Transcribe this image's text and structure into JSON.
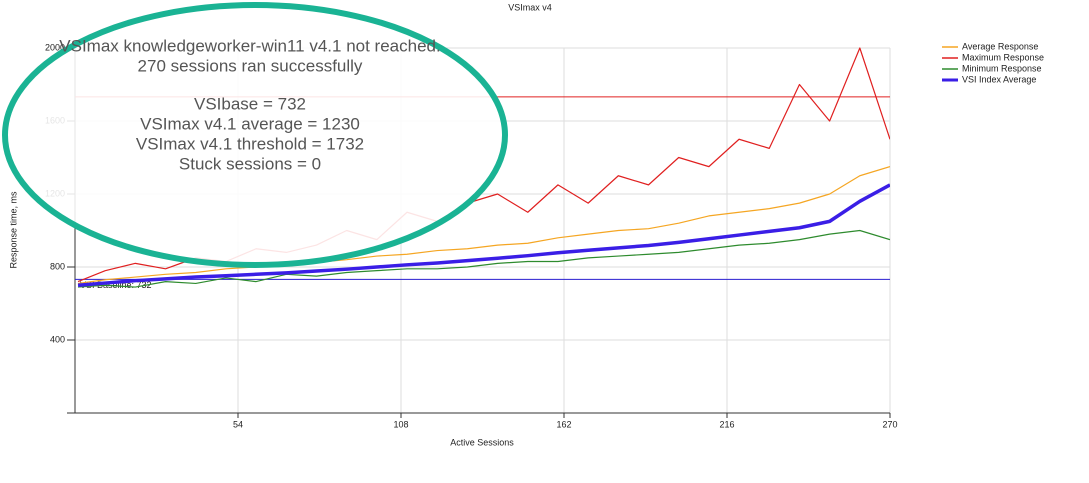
{
  "chart_data": {
    "type": "line",
    "title": "VSImax v4",
    "x_label": "Active Sessions",
    "y_label": "Response time, ms",
    "x": [
      1,
      10,
      20,
      30,
      40,
      50,
      60,
      70,
      80,
      90,
      100,
      110,
      120,
      130,
      140,
      150,
      160,
      170,
      180,
      190,
      200,
      210,
      220,
      230,
      240,
      250,
      260,
      270
    ],
    "series": [
      {
        "name": "Average Response",
        "color": "#f5a623",
        "values": [
          710,
          730,
          745,
          760,
          770,
          790,
          800,
          810,
          825,
          840,
          860,
          870,
          890,
          900,
          920,
          930,
          960,
          980,
          1000,
          1010,
          1040,
          1080,
          1100,
          1120,
          1150,
          1200,
          1300,
          1350
        ]
      },
      {
        "name": "Maximum Response",
        "color": "#e02020",
        "values": [
          720,
          780,
          820,
          790,
          850,
          830,
          900,
          880,
          920,
          1000,
          950,
          1100,
          1050,
          1150,
          1200,
          1100,
          1250,
          1150,
          1300,
          1250,
          1400,
          1350,
          1500,
          1450,
          1800,
          1600,
          2000,
          1500
        ]
      },
      {
        "name": "Minimum Response",
        "color": "#2e8b2e",
        "values": [
          690,
          700,
          690,
          720,
          710,
          740,
          720,
          760,
          750,
          770,
          780,
          790,
          790,
          800,
          820,
          830,
          830,
          850,
          860,
          870,
          880,
          900,
          920,
          930,
          950,
          980,
          1000,
          950
        ]
      },
      {
        "name": "VSI Index Average",
        "color": "#3a1ee6",
        "values": [
          700,
          712,
          725,
          735,
          745,
          752,
          760,
          768,
          778,
          788,
          800,
          812,
          822,
          835,
          848,
          862,
          878,
          892,
          905,
          918,
          935,
          955,
          975,
          995,
          1015,
          1050,
          1160,
          1250
        ]
      }
    ],
    "xlim": [
      0,
      270
    ],
    "xticks": [
      54,
      108,
      162,
      216,
      270
    ],
    "ylim": [
      0,
      2000
    ],
    "yticks": [
      400,
      800,
      1200,
      1600,
      2000
    ],
    "grid": true,
    "threshold_line": {
      "value": 1732,
      "color": "#e02020"
    },
    "baseline_line": {
      "value": 732,
      "label": "VSI Baseline: 732",
      "color": "#2a1ed0"
    },
    "overlay_text": [
      "VSImax knowledgeworker-win11 v4.1 not reached.",
      "270 sessions ran successfully",
      "VSIbase = 732",
      "VSImax v4.1 average = 1230",
      "VSImax v4.1 threshold = 1732",
      "Stuck sessions = 0"
    ],
    "legend_position": "top-right"
  }
}
